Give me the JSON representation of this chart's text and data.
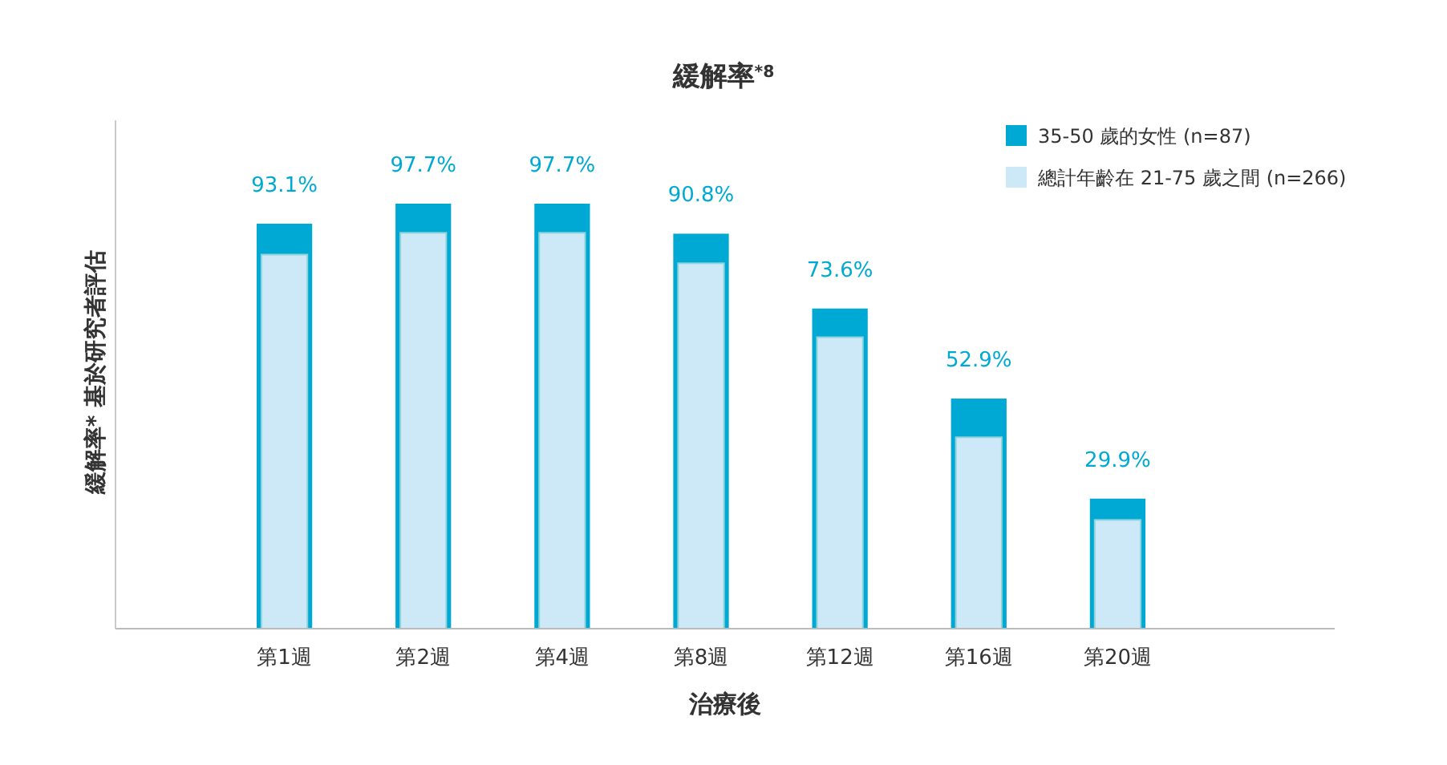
{
  "chart_data": {
    "type": "bar",
    "title": "緩解率$^{*8}$",
    "xlabel": "治療後",
    "ylabel": "緩解率* 基於研究者評估",
    "categories": [
      "第1週",
      "第2週",
      "第4週",
      "第8週",
      "第12週",
      "第16週",
      "第20週"
    ],
    "series": [
      {
        "name": "35-50 歲的女性 (n=87)",
        "color": "#00a9d4",
        "values": [
          93.1,
          97.7,
          97.7,
          90.8,
          73.6,
          52.9,
          29.9
        ],
        "value_labels": [
          "93.1%",
          "97.7%",
          "97.7%",
          "90.8%",
          "73.6%",
          "52.9%",
          "29.9%"
        ]
      },
      {
        "name": "總計年齡在 21-75 歲之間 (n=266)",
        "color": "#cde8f7",
        "values": [
          86,
          91,
          91,
          84,
          67,
          44,
          25
        ]
      }
    ],
    "legend": "top right",
    "grid": false
  }
}
